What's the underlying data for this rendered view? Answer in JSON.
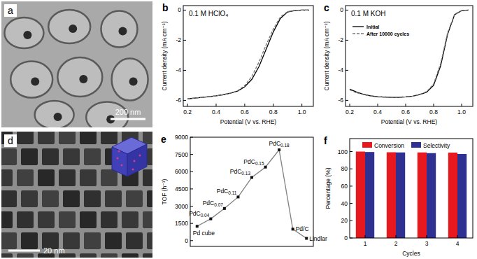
{
  "chart_data": [
    {
      "type": "image",
      "panel": "a",
      "annotations": [
        "200 nm"
      ]
    },
    {
      "type": "line",
      "panel": "b",
      "title": "0.1 M HClO₄",
      "xlabel": "Potential (V vs. RHE)",
      "ylabel": "Current density (mA cm⁻²)",
      "x": [
        0.2,
        0.25,
        0.3,
        0.35,
        0.4,
        0.45,
        0.5,
        0.55,
        0.6,
        0.65,
        0.7,
        0.75,
        0.8,
        0.85,
        0.9,
        0.95,
        1.0,
        1.05
      ],
      "series": [
        {
          "name": "Initial",
          "color": "#000000",
          "line_style": "solid",
          "values": [
            -5.9,
            -5.85,
            -5.8,
            -5.75,
            -5.7,
            -5.62,
            -5.52,
            -5.38,
            -5.1,
            -4.6,
            -3.75,
            -2.6,
            -1.45,
            -0.55,
            -0.12,
            -0.03,
            0,
            0
          ]
        },
        {
          "name": "After 10000 cycles",
          "color": "#777777",
          "line_style": "dashed",
          "values": [
            -5.9,
            -5.85,
            -5.8,
            -5.75,
            -5.7,
            -5.62,
            -5.52,
            -5.36,
            -5.02,
            -4.4,
            -3.45,
            -2.3,
            -1.25,
            -0.45,
            -0.1,
            -0.02,
            0,
            0
          ]
        }
      ],
      "xlim": [
        0.17,
        1.08
      ],
      "ylim": [
        -6.4,
        0.3
      ],
      "xticks": [
        0.2,
        0.4,
        0.6,
        0.8,
        {
          "value": 1,
          "label": "1.0"
        }
      ],
      "yticks": [
        0,
        -2,
        -4,
        -6
      ],
      "grid": false
    },
    {
      "type": "line",
      "panel": "c",
      "title": "0.1 M KOH",
      "xlabel": "Potential (V vs. RHE)",
      "ylabel": "Current density (mA cm⁻²)",
      "x": [
        0.2,
        0.25,
        0.3,
        0.35,
        0.4,
        0.45,
        0.5,
        0.55,
        0.6,
        0.65,
        0.7,
        0.75,
        0.8,
        0.85,
        0.9,
        0.95,
        1.0,
        1.05
      ],
      "series": [
        {
          "name": "Initial",
          "color": "#000000",
          "line_style": "solid",
          "values": [
            -5.25,
            -5.45,
            -5.6,
            -5.7,
            -5.75,
            -5.78,
            -5.8,
            -5.8,
            -5.77,
            -5.72,
            -5.62,
            -5.45,
            -5.0,
            -3.7,
            -1.6,
            -0.3,
            -0.03,
            0
          ]
        },
        {
          "name": "After 10000 cycles",
          "color": "#777777",
          "line_style": "dashed",
          "values": [
            -5.3,
            -5.5,
            -5.62,
            -5.72,
            -5.77,
            -5.79,
            -5.8,
            -5.8,
            -5.77,
            -5.72,
            -5.6,
            -5.42,
            -4.9,
            -3.55,
            -1.5,
            -0.28,
            -0.03,
            0
          ]
        }
      ],
      "xlim": [
        0.17,
        1.08
      ],
      "ylim": [
        -6.4,
        0.3
      ],
      "xticks": [
        0.2,
        0.4,
        0.6,
        0.8,
        {
          "value": 1,
          "label": "1.0"
        }
      ],
      "yticks": [
        0,
        -2,
        -4,
        -6
      ],
      "grid": false,
      "legend": "top-left"
    },
    {
      "type": "image",
      "panel": "d",
      "annotations": [
        "20 nm"
      ]
    },
    {
      "type": "line",
      "panel": "e",
      "ylabel": "TOF (h⁻¹)",
      "categories": [
        "Pd cube",
        "PdC0.04",
        "PdC0.07",
        "PdC0.11",
        "PdC0.13",
        "PdC0.15",
        "PdC0.18",
        "Pd/C",
        "Lindlar"
      ],
      "values": [
        1250,
        1900,
        2800,
        3800,
        5500,
        6400,
        7900,
        1000,
        200
      ],
      "color": "#808080",
      "marker": "square",
      "ylim": [
        -500,
        9000
      ],
      "yticks": [
        0,
        1500,
        3000,
        4500,
        6000,
        7500,
        9000
      ],
      "tick_labels": "y",
      "grid": false
    },
    {
      "type": "bar",
      "panel": "f",
      "xlabel": "Cycles",
      "ylabel": "Percentage (%)",
      "categories": [
        "1",
        "2",
        "3",
        "4"
      ],
      "series": [
        {
          "name": "Conversion",
          "color": "#e8191e",
          "values": [
            100,
            99.2,
            99,
            98.8
          ]
        },
        {
          "name": "Selectivity",
          "color": "#2e3192",
          "values": [
            99.5,
            99,
            98.2,
            97.2
          ]
        }
      ],
      "ylim": [
        0,
        115
      ],
      "yticks": [
        0,
        20,
        40,
        60,
        80,
        100
      ],
      "legend": "top",
      "grid": false
    }
  ]
}
